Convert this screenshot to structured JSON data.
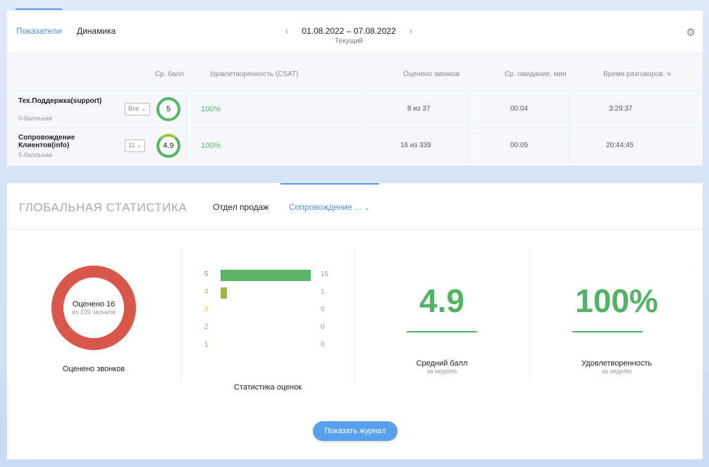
{
  "tabs": [
    "Показатели",
    "Динамика"
  ],
  "date": {
    "range": "01.08.2022 – 07.08.2022",
    "sub": "Текущий"
  },
  "table": {
    "headers": [
      "Ср. балл",
      "Удовлетворенность (CSAT)",
      "Оценено звонков",
      "Ср. ожидание, мин",
      "Время разговоров, ч"
    ],
    "rows": [
      {
        "name": "Тех.Поддержка(support)",
        "kind": "5-балльная",
        "select": "Все",
        "score": "5",
        "csat": "100%",
        "rated": "8 из 37",
        "wait": "00:04",
        "talk": "3:29:37"
      },
      {
        "name": "Сопровождение Клиентов(info)",
        "kind": "5-балльная",
        "select": "11",
        "score": "4.9",
        "csat": "100%",
        "rated": "16 из 339",
        "wait": "00:05",
        "talk": "20:44:45"
      }
    ]
  },
  "global": {
    "title": "ГЛОБАЛЬНАЯ СТАТИСТИКА",
    "tab1": "Отдел продаж",
    "tab2": "Сопровождение ...",
    "donut": {
      "main": "Оценено 16",
      "sub": "из 339 звонков",
      "label": "Оценено звонков"
    },
    "ratings": {
      "label": "Статистика оценок",
      "items": [
        {
          "grade": "5",
          "count": "15",
          "color": "#5ab56b"
        },
        {
          "grade": "4",
          "count": "1",
          "color": "#9cb84a"
        },
        {
          "grade": "3",
          "count": "0",
          "color": "#e8c04a"
        },
        {
          "grade": "2",
          "count": "0",
          "color": "#d9955a"
        },
        {
          "grade": "1",
          "count": "0",
          "color": "#c9874a"
        }
      ]
    },
    "avg": {
      "value": "4.9",
      "label": "Средний балл",
      "sub": "за неделю"
    },
    "csat": {
      "value": "100%",
      "label": "Удовлетворенность",
      "sub": "за неделю"
    },
    "button": "Показать журнал"
  }
}
